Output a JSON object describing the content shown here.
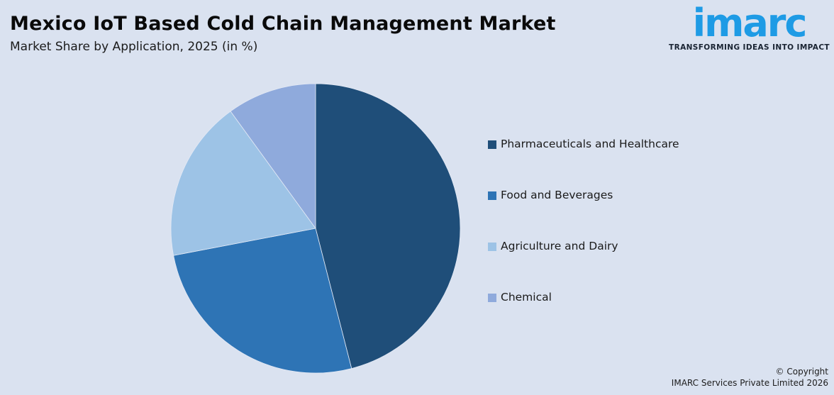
{
  "header": {
    "title": "Mexico IoT Based Cold Chain Management Market",
    "subtitle": "Market Share by Application, 2025 (in %)"
  },
  "logo": {
    "wordmark": "imarc",
    "tagline": "TRANSFORMING IDEAS INTO IMPACT",
    "brand_color": "#1E9BE5"
  },
  "chart_data": {
    "type": "pie",
    "title": "Mexico IoT Based Cold Chain Management Market",
    "subtitle": "Market Share by Application, 2025 (in %)",
    "unit": "%",
    "direction": "clockwise",
    "start_angle_deg": 0,
    "legend_position": "right",
    "data_labels_shown": false,
    "segments": [
      {
        "label": "Pharmaceuticals and Healthcare",
        "value": 46,
        "color": "#1F4E79"
      },
      {
        "label": "Food and Beverages",
        "value": 26,
        "color": "#2E74B5"
      },
      {
        "label": "Agriculture and Dairy",
        "value": 18,
        "color": "#9DC3E6"
      },
      {
        "label": "Chemical",
        "value": 10,
        "color": "#8FAADC"
      }
    ]
  },
  "footer": {
    "line1": "© Copyright",
    "line2": "IMARC Services Private Limited 2026"
  },
  "colors": {
    "background": "#DAE2F0",
    "title_text": "#0A0A0A",
    "slice_divider": "#E3E9F5"
  }
}
